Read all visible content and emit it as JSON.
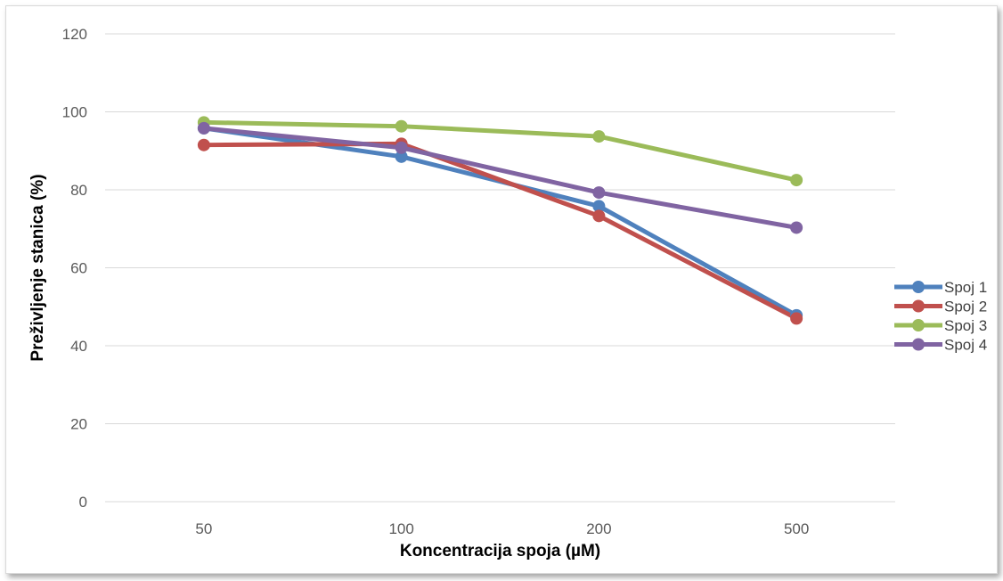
{
  "chart_data": {
    "type": "line",
    "title": "",
    "xlabel": "Koncentracija spoja (µM)",
    "ylabel": "Preživljenje stanica (%)",
    "categories": [
      "50",
      "100",
      "200",
      "500"
    ],
    "ylim": [
      0,
      120
    ],
    "yticks": [
      0,
      20,
      40,
      60,
      80,
      100,
      120
    ],
    "grid": true,
    "legend_position": "right",
    "series": [
      {
        "name": "Spoj 1",
        "color": "#4f81bd",
        "values": [
          95.8,
          88.5,
          75.8,
          47.8
        ]
      },
      {
        "name": "Spoj 2",
        "color": "#c0504d",
        "values": [
          91.5,
          91.8,
          73.3,
          47.0
        ]
      },
      {
        "name": "Spoj 3",
        "color": "#9bbb59",
        "values": [
          97.3,
          96.3,
          93.7,
          82.5
        ]
      },
      {
        "name": "Spoj 4",
        "color": "#8064a2",
        "values": [
          95.8,
          90.8,
          79.3,
          70.3
        ]
      }
    ]
  }
}
